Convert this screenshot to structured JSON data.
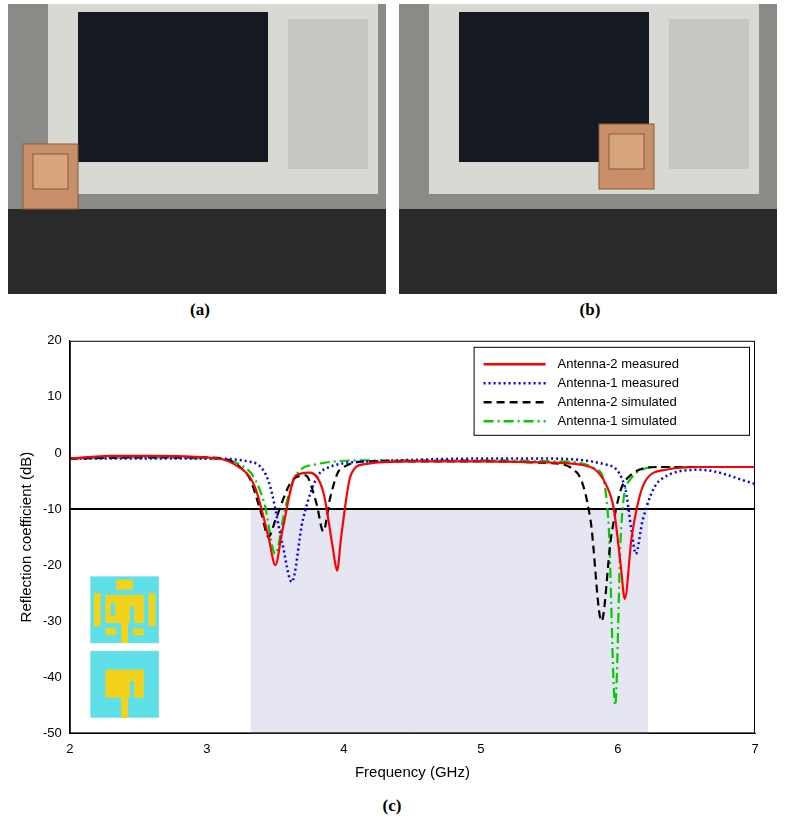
{
  "panel_labels": [
    "(a)",
    "(b)",
    "(c)"
  ],
  "chart_data": {
    "type": "line",
    "x_label": "Frequency (GHz)",
    "y_label": "Reflection coefficient (dB)",
    "xlim": [
      2,
      7
    ],
    "xticks": [
      2,
      3,
      4,
      5,
      6,
      7
    ],
    "ylim": [
      -50,
      20
    ],
    "yticks": [
      -50,
      -40,
      -30,
      -20,
      -10,
      0,
      10,
      20
    ],
    "grid": false,
    "legend": "upper right",
    "reference_lines": [
      {
        "y": -10,
        "color": "#000000"
      }
    ],
    "shaded_region": {
      "x": [
        3.32,
        6.22
      ],
      "y": [
        -50,
        -10
      ],
      "color": "#e6e6f2"
    },
    "series": [
      {
        "name": "Antenna-2 measured",
        "color": "#ff0000",
        "line_style": "solid",
        "x": [
          2,
          2.3,
          2.6,
          3,
          3.2,
          3.35,
          3.45,
          3.5,
          3.55,
          3.65,
          3.75,
          3.85,
          3.92,
          3.95,
          3.98,
          4.05,
          4.15,
          4.5,
          5,
          5.5,
          5.8,
          5.92,
          5.97,
          6.02,
          6.05,
          6.1,
          6.2,
          6.35,
          6.6,
          7
        ],
        "values": [
          -1,
          -0.5,
          -0.5,
          -0.8,
          -2,
          -6,
          -15,
          -20,
          -14,
          -4,
          -3.5,
          -7,
          -17,
          -21,
          -15,
          -4,
          -2,
          -1.5,
          -1.5,
          -1.7,
          -2.5,
          -6,
          -10,
          -20,
          -26,
          -15,
          -5,
          -3,
          -2.5,
          -2.5
        ]
      },
      {
        "name": "Antenna-1 measured",
        "color": "#0000ff",
        "line_style": "dotted",
        "x": [
          2,
          2.5,
          3,
          3.3,
          3.45,
          3.55,
          3.62,
          3.7,
          3.85,
          4.2,
          5,
          5.5,
          5.9,
          6.05,
          6.1,
          6.13,
          6.18,
          6.3,
          6.6,
          7
        ],
        "values": [
          -1,
          -1,
          -1,
          -1.5,
          -5,
          -16,
          -23,
          -12,
          -3,
          -1.5,
          -1,
          -1,
          -2,
          -6,
          -14,
          -18,
          -12,
          -5,
          -3,
          -5.5
        ]
      },
      {
        "name": "Antenna-2 simulated",
        "color": "#000000",
        "line_style": "dashed",
        "x": [
          2,
          2.5,
          3,
          3.3,
          3.4,
          3.45,
          3.5,
          3.62,
          3.72,
          3.8,
          3.85,
          3.9,
          3.97,
          4.2,
          5,
          5.5,
          5.7,
          5.8,
          5.88,
          5.95,
          6.05,
          6.3,
          6.6,
          7
        ],
        "values": [
          -1,
          -0.8,
          -0.8,
          -4,
          -11,
          -15,
          -12,
          -5,
          -4,
          -9,
          -14,
          -8,
          -3,
          -1.5,
          -1.5,
          -1.8,
          -3.5,
          -12,
          -30,
          -15,
          -5,
          -2.5,
          -2.5,
          -2.5
        ]
      },
      {
        "name": "Antenna-1 simulated",
        "color": "#00cc00",
        "line_style": "dashdot",
        "x": [
          2,
          2.5,
          3,
          3.3,
          3.42,
          3.5,
          3.57,
          3.65,
          3.8,
          4.2,
          5,
          5.6,
          5.85,
          5.93,
          5.98,
          6.02,
          6.08,
          6.3,
          6.6,
          7
        ],
        "values": [
          -1,
          -0.8,
          -1,
          -3,
          -9,
          -18,
          -10,
          -4,
          -2,
          -1.3,
          -1.3,
          -1.5,
          -3,
          -12,
          -45,
          -15,
          -5,
          -2.5,
          -2.5,
          -2.5
        ]
      }
    ]
  }
}
